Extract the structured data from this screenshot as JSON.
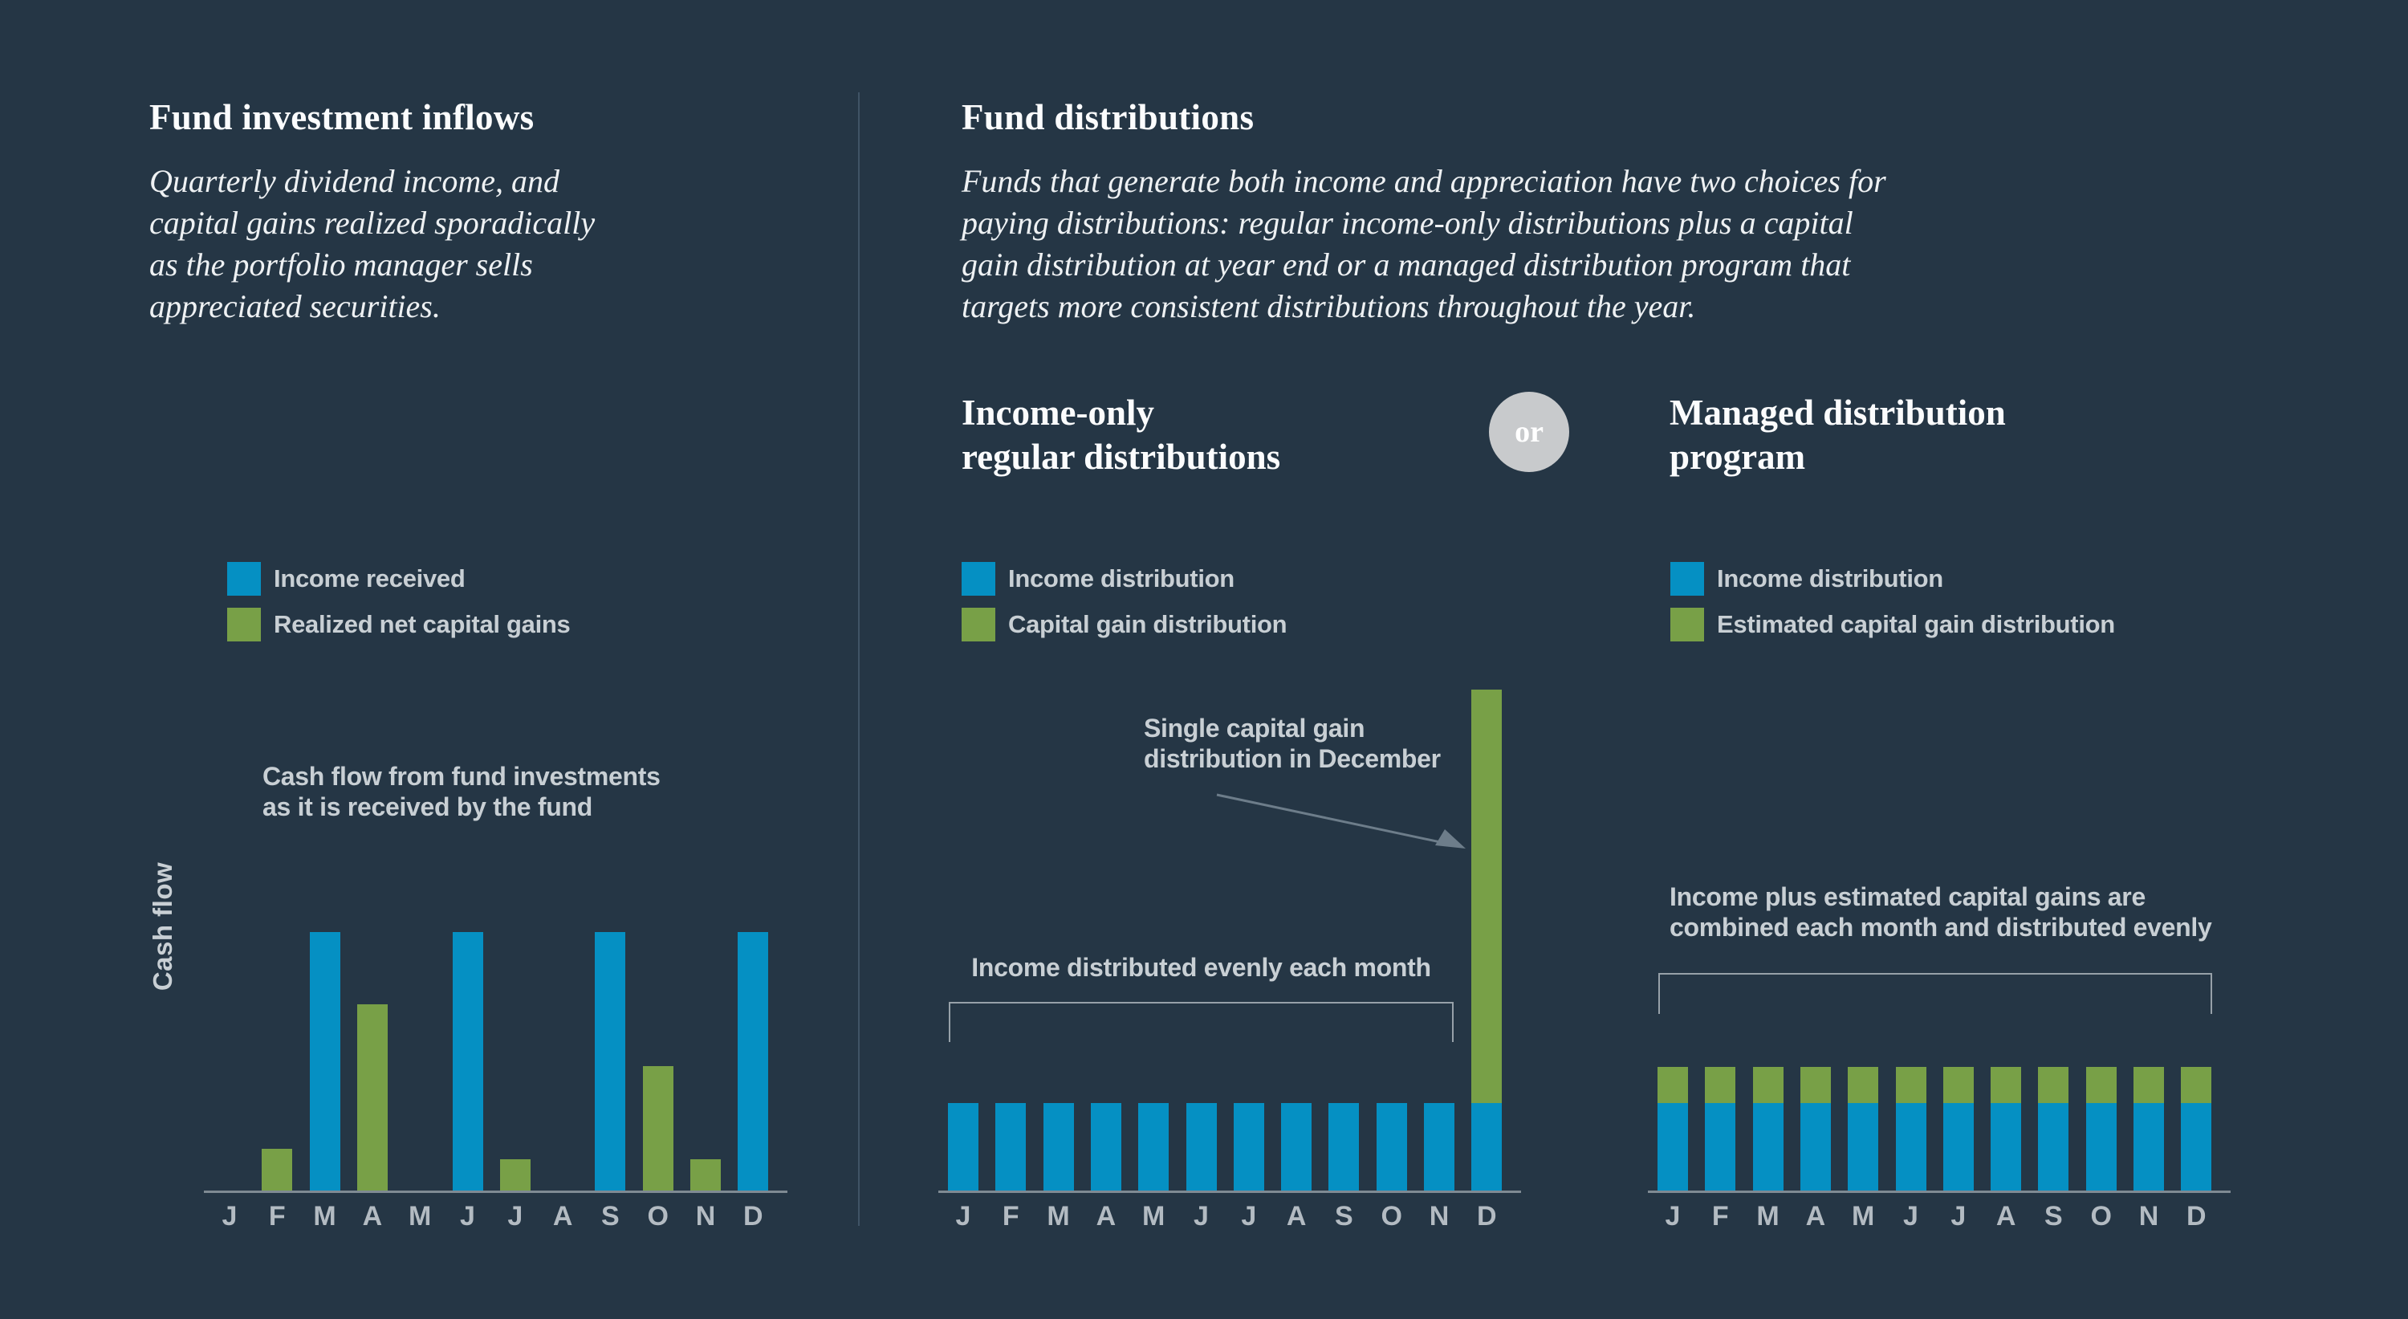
{
  "colors": {
    "background": "#253645",
    "income_blue": "#0590c3",
    "capital_green": "#78a047",
    "text_white": "#fbfcfd",
    "text_gray": "#c8cfd4",
    "month_gray": "#b3bbc2",
    "axis_gray": "#7f8a93",
    "bracket_gray": "#97a1a9",
    "arrow_gray": "#6d7d8a",
    "or_circle_gray": "#c8cacc"
  },
  "left_panel": {
    "title": "Fund investment inflows",
    "subtitle_lines": [
      "Quarterly dividend income, and",
      "capital gains realized sporadically",
      "as the portfolio manager sells",
      "appreciated securities."
    ],
    "legend": [
      {
        "label": "Income received",
        "swatch": "income_blue"
      },
      {
        "label": "Realized net capital gains",
        "swatch": "capital_green"
      }
    ],
    "note_lines": [
      "Cash flow from fund investments",
      "as it is received by the fund"
    ],
    "y_axis_label": "Cash flow"
  },
  "middle_panel": {
    "title": "Fund distributions",
    "intro_lines": [
      "Funds that generate both income and appreciation have two choices for",
      "paying distributions: regular income-only distributions plus a capital",
      "gain distribution at year end or a managed distribution program that",
      "targets more consistent distributions throughout the year."
    ],
    "option_a_heading_lines": [
      "Income-only",
      "regular distributions"
    ],
    "or_label": "or",
    "option_b_heading_lines": [
      "Managed distribution",
      "program"
    ],
    "legend": [
      {
        "label": "Income distribution",
        "swatch": "income_blue"
      },
      {
        "label": "Capital gain distribution",
        "swatch": "capital_green"
      }
    ],
    "callout_lines": [
      "Single capital gain",
      "distribution in December"
    ],
    "bracket_label": "Income distributed evenly each month"
  },
  "right_panel": {
    "legend": [
      {
        "label": "Income distribution",
        "swatch": "income_blue"
      },
      {
        "label": "Estimated capital gain distribution",
        "swatch": "capital_green"
      }
    ],
    "note_lines": [
      "Income plus estimated capital gains are",
      "combined each month and distributed evenly"
    ]
  },
  "chart_data": [
    {
      "id": "fund-investment-inflows",
      "type": "bar",
      "title": "Cash flow from fund investments as it is received by the fund",
      "ylabel": "Cash flow",
      "units": "relative cash flow (one quarterly income payment = 100)",
      "grid": false,
      "categories": [
        "J",
        "F",
        "M",
        "A",
        "M",
        "J",
        "J",
        "A",
        "S",
        "O",
        "N",
        "D"
      ],
      "series": [
        {
          "name": "Income received",
          "values": [
            0,
            0,
            100,
            0,
            0,
            100,
            0,
            0,
            100,
            0,
            0,
            100
          ]
        },
        {
          "name": "Realized net capital gains",
          "values": [
            0,
            16,
            0,
            72,
            0,
            0,
            12,
            0,
            0,
            48,
            12,
            0
          ]
        }
      ]
    },
    {
      "id": "income-only-regular-distributions",
      "type": "bar",
      "title": "Income-only regular distributions",
      "units": "relative cash flow (one quarterly income payment = 100)",
      "grid": false,
      "annotation": "Single capital gain distribution in December",
      "bracket_label": "Income distributed evenly each month",
      "categories": [
        "J",
        "F",
        "M",
        "A",
        "M",
        "J",
        "J",
        "A",
        "S",
        "O",
        "N",
        "D"
      ],
      "series": [
        {
          "name": "Income distribution",
          "values": [
            34,
            34,
            34,
            34,
            34,
            34,
            34,
            34,
            34,
            34,
            34,
            34
          ]
        },
        {
          "name": "Capital gain distribution",
          "values": [
            0,
            0,
            0,
            0,
            0,
            0,
            0,
            0,
            0,
            0,
            0,
            160
          ]
        }
      ]
    },
    {
      "id": "managed-distribution-program",
      "type": "bar",
      "title": "Managed distribution program",
      "units": "relative cash flow (one quarterly income payment = 100)",
      "grid": false,
      "annotation": "Income plus estimated capital gains are combined each month and distributed evenly",
      "categories": [
        "J",
        "F",
        "M",
        "A",
        "M",
        "J",
        "J",
        "A",
        "S",
        "O",
        "N",
        "D"
      ],
      "series": [
        {
          "name": "Income distribution",
          "values": [
            34,
            34,
            34,
            34,
            34,
            34,
            34,
            34,
            34,
            34,
            34,
            34
          ]
        },
        {
          "name": "Estimated capital gain distribution",
          "values": [
            14,
            14,
            14,
            14,
            14,
            14,
            14,
            14,
            14,
            14,
            14,
            14
          ]
        }
      ]
    }
  ]
}
